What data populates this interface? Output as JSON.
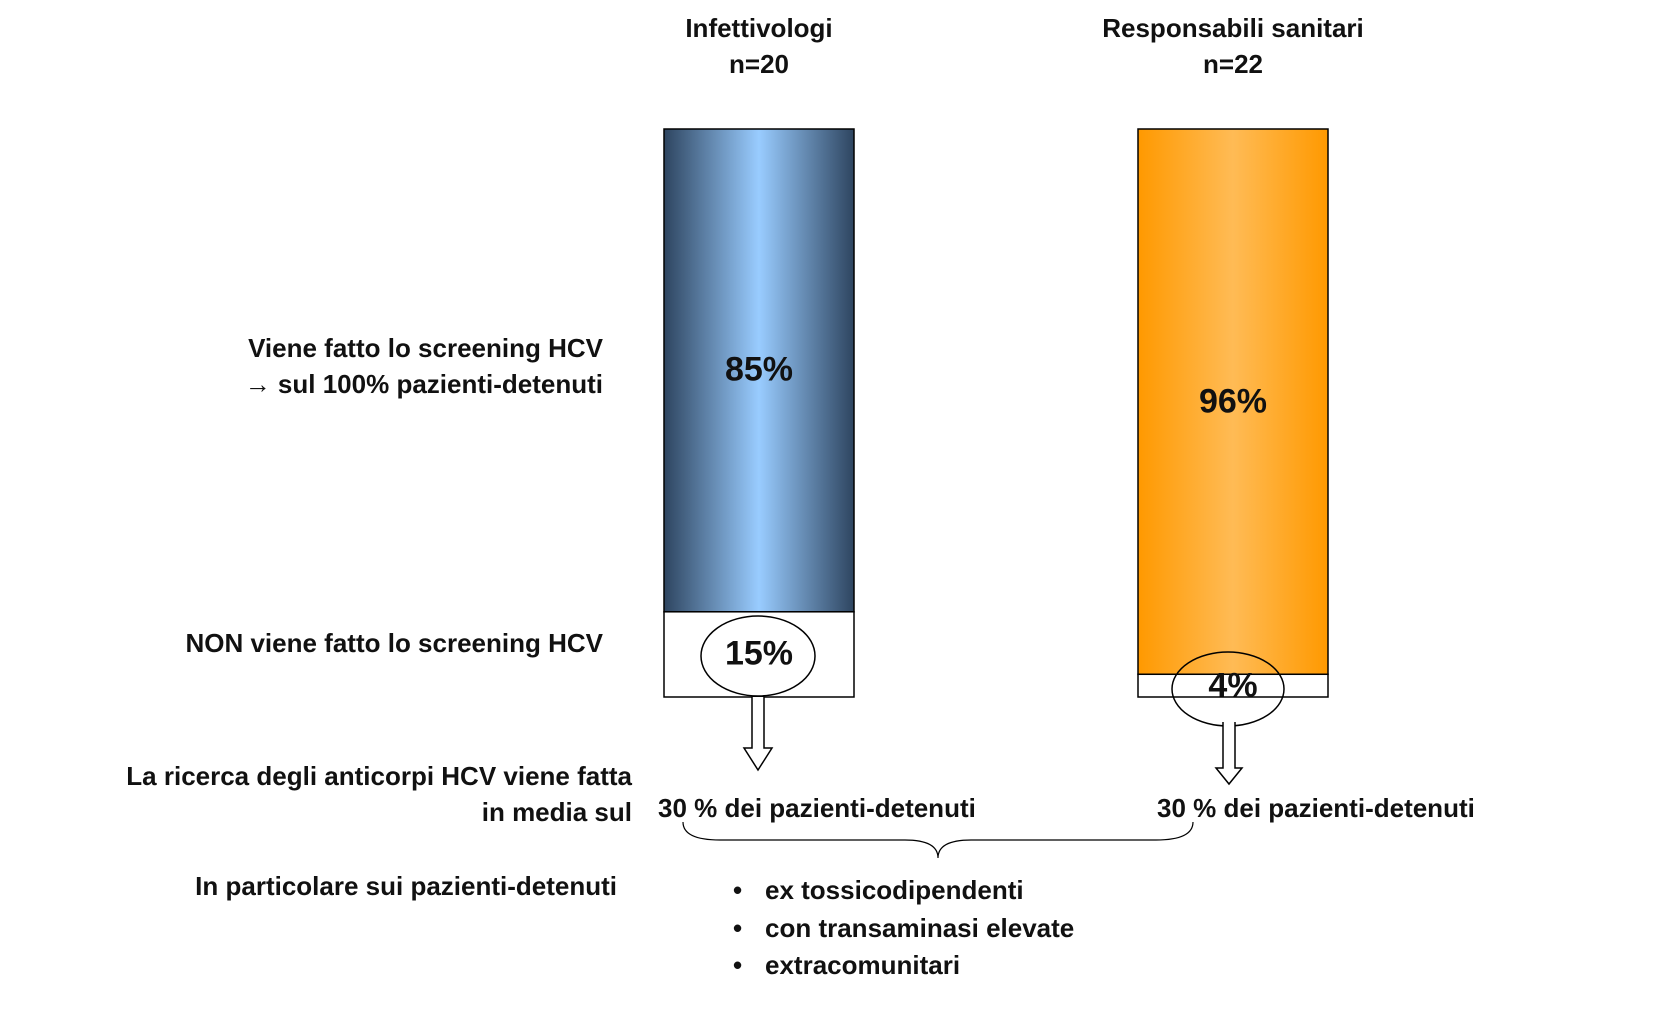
{
  "chart_data": {
    "type": "stacked_bar",
    "categories": [
      "Infettivologi",
      "Responsabili sanitari"
    ],
    "sample_sizes": [
      "n=20",
      "n=22"
    ],
    "ylim": [
      0,
      100
    ],
    "series": [
      {
        "name": "Viene fatto lo screening HCV\n→ sul 100% pazienti-detenuti",
        "colors": [
          [
            "#2e4560",
            "#99ccff",
            "#2e4560"
          ],
          [
            "#ff9900",
            "#ffbb55",
            "#ff9900"
          ]
        ],
        "values": [
          85,
          96
        ],
        "value_labels": [
          "85%",
          "96%"
        ]
      },
      {
        "name": "NON viene fatto lo screening HCV",
        "color": "#ffffff",
        "values": [
          15,
          4
        ],
        "value_labels": [
          "15%",
          "4%"
        ]
      }
    ],
    "annotations": {
      "antibody_label": "La ricerca degli anticorpi HCV viene fatta\nin media sul",
      "antibody_values": [
        "30 % dei pazienti-detenuti",
        "30 % dei pazienti-detenuti"
      ],
      "particular_label": "In particolare sui pazienti-detenuti",
      "bullets": [
        "ex tossicodipendenti",
        "con transaminasi elevate",
        "extracomunitari"
      ]
    }
  }
}
